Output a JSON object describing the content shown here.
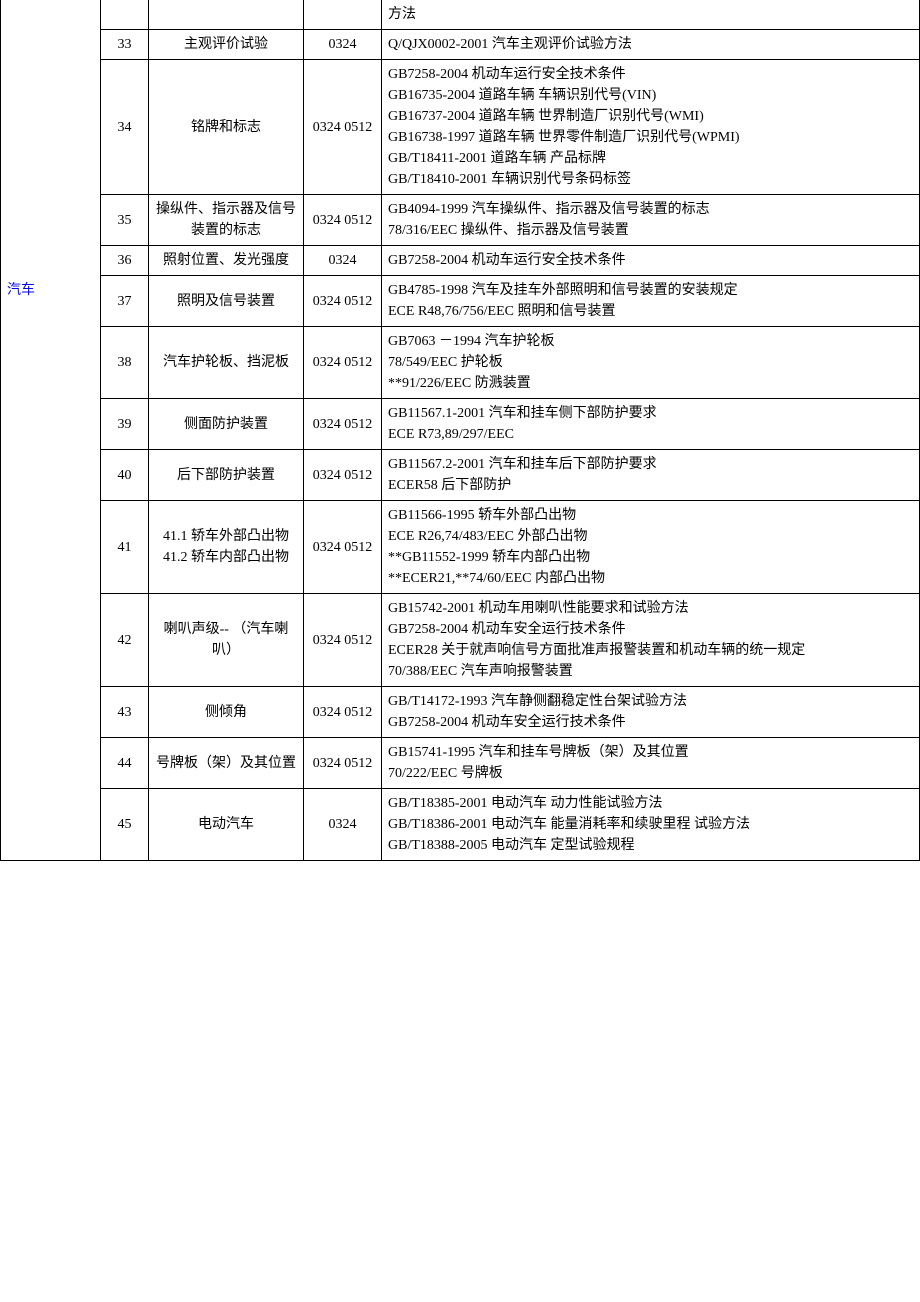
{
  "category_label": "汽车",
  "link_color": "#0000ff",
  "rows": [
    {
      "num": "",
      "item": "",
      "code": "",
      "standard": "方法"
    },
    {
      "num": "33",
      "item": "主观评价试验",
      "code": "0324",
      "standard": "Q/QJX0002-2001  汽车主观评价试验方法"
    },
    {
      "num": "34",
      "item": "铭牌和标志",
      "code": "0324 0512",
      "standard": "GB7258-2004  机动车运行安全技术条件\nGB16735-2004  道路车辆  车辆识别代号(VIN)\nGB16737-2004  道路车辆 世界制造厂识别代号(WMI)\nGB16738-1997  道路车辆 世界零件制造厂识别代号(WPMI)\nGB/T18411-2001  道路车辆 产品标牌\nGB/T18410-2001  车辆识别代号条码标签"
    },
    {
      "num": "35",
      "item": "操纵件、指示器及信号装置的标志",
      "code": "0324 0512",
      "standard": "GB4094-1999 汽车操纵件、指示器及信号装置的标志\n78/316/EEC  操纵件、指示器及信号装置"
    },
    {
      "num": "36",
      "item": "照射位置、发光强度",
      "code": "0324",
      "standard": "GB7258-2004  机动车运行安全技术条件"
    },
    {
      "num": "37",
      "item": "照明及信号装置",
      "code": "0324 0512",
      "standard": "GB4785-1998 汽车及挂车外部照明和信号装置的安装规定\nECE R48,76/756/EEC  照明和信号装置"
    },
    {
      "num": "38",
      "item": "汽车护轮板、挡泥板",
      "code": "0324 0512",
      "standard": "GB7063  －1994 汽车护轮板\n78/549/EEC  护轮板\n**91/226/EEC  防溅装置"
    },
    {
      "num": "39",
      "item": "侧面防护装置",
      "code": "0324 0512",
      "standard": "GB11567.1-2001 汽车和挂车侧下部防护要求\nECE R73,89/297/EEC"
    },
    {
      "num": "40",
      "item": "后下部防护装置",
      "code": "0324 0512",
      "standard": "GB11567.2-2001 汽车和挂车后下部防护要求\nECER58  后下部防护"
    },
    {
      "num": "41",
      "item": "41.1 轿车外部凸出物\n41.2 轿车内部凸出物",
      "code": "0324 0512",
      "standard": "GB11566-1995  轿车外部凸出物\nECE R26,74/483/EEC  外部凸出物\n**GB11552-1999  轿车内部凸出物\n**ECER21,**74/60/EEC  内部凸出物"
    },
    {
      "num": "42",
      "item": "喇叭声级--  （汽车喇叭）",
      "code": "0324 0512",
      "standard": "GB15742-2001  机动车用喇叭性能要求和试验方法\nGB7258-2004  机动车安全运行技术条件\nECER28  关于就声响信号方面批准声报警装置和机动车辆的统一规定\n70/388/EEC  汽车声响报警装置"
    },
    {
      "num": "43",
      "item": "侧倾角",
      "code": "0324 0512",
      "standard": "GB/T14172-1993 汽车静侧翻稳定性台架试验方法\nGB7258-2004  机动车安全运行技术条件"
    },
    {
      "num": "44",
      "item": "号牌板（架）及其位置",
      "code": "0324 0512",
      "standard": "GB15741-1995  汽车和挂车号牌板（架）及其位置\n70/222/EEC  号牌板"
    },
    {
      "num": "45",
      "item": "电动汽车",
      "code": "0324",
      "standard": "GB/T18385-2001  电动汽车  动力性能试验方法\nGB/T18386-2001  电动汽车  能量消耗率和续驶里程  试验方法\nGB/T18388-2005  电动汽车  定型试验规程"
    }
  ]
}
